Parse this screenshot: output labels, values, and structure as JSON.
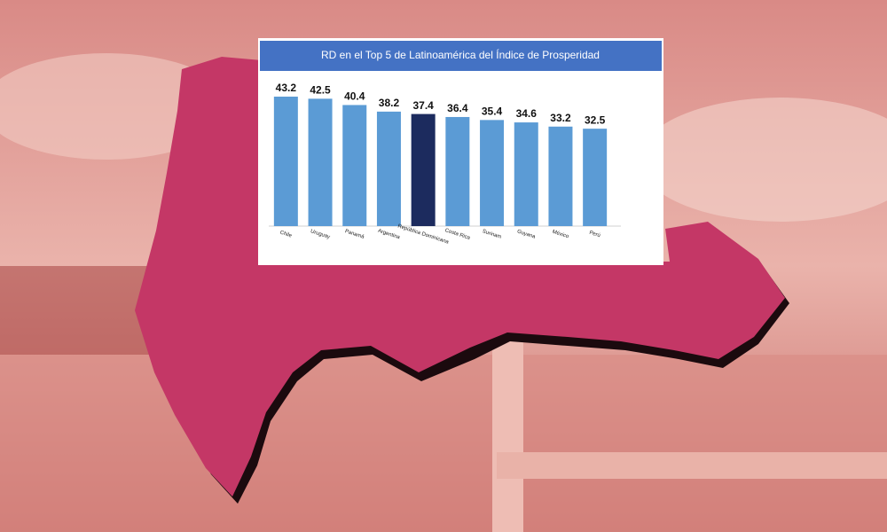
{
  "chart_data": {
    "type": "bar",
    "title": "RD en el Top 5 de Latinoamérica del Índice de Prosperidad",
    "categories": [
      "Chile",
      "Uruguay",
      "Panamá",
      "Argentina",
      "República Dominicana",
      "Costa Rica",
      "Surinam",
      "Guyana",
      "México",
      "Perú"
    ],
    "values": [
      43.2,
      42.5,
      40.4,
      38.2,
      37.4,
      36.4,
      35.4,
      34.6,
      33.2,
      32.5
    ],
    "colors": [
      "#5b9bd5",
      "#5b9bd5",
      "#5b9bd5",
      "#5b9bd5",
      "#1c2b5e",
      "#5b9bd5",
      "#5b9bd5",
      "#5b9bd5",
      "#5b9bd5",
      "#5b9bd5"
    ]
  }
}
